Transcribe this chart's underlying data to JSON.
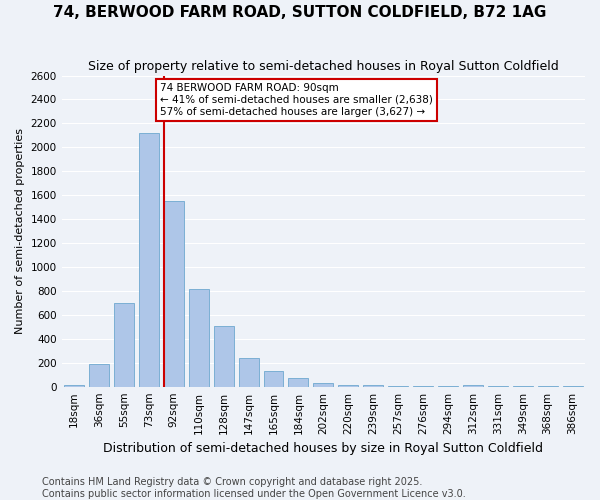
{
  "title": "74, BERWOOD FARM ROAD, SUTTON COLDFIELD, B72 1AG",
  "subtitle": "Size of property relative to semi-detached houses in Royal Sutton Coldfield",
  "xlabel": "Distribution of semi-detached houses by size in Royal Sutton Coldfield",
  "ylabel": "Number of semi-detached properties",
  "categories": [
    "18sqm",
    "36sqm",
    "55sqm",
    "73sqm",
    "92sqm",
    "110sqm",
    "128sqm",
    "147sqm",
    "165sqm",
    "184sqm",
    "202sqm",
    "220sqm",
    "239sqm",
    "257sqm",
    "276sqm",
    "294sqm",
    "312sqm",
    "331sqm",
    "349sqm",
    "368sqm",
    "386sqm"
  ],
  "values": [
    10,
    190,
    700,
    2120,
    1550,
    820,
    510,
    240,
    130,
    70,
    30,
    15,
    10,
    5,
    5,
    3,
    15,
    3,
    3,
    3,
    3
  ],
  "bar_color": "#aec6e8",
  "bar_edge_color": "#7bafd4",
  "property_line_x": 4,
  "property_sqm": "90sqm",
  "pct_smaller": 41,
  "n_smaller": 2638,
  "pct_larger": 57,
  "n_larger": 3627,
  "line_color": "#cc0000",
  "annotation_box_color": "#cc0000",
  "ylim": [
    0,
    2600
  ],
  "yticks": [
    0,
    200,
    400,
    600,
    800,
    1000,
    1200,
    1400,
    1600,
    1800,
    2000,
    2200,
    2400,
    2600
  ],
  "background_color": "#eef2f8",
  "grid_color": "#ffffff",
  "footer_line1": "Contains HM Land Registry data © Crown copyright and database right 2025.",
  "footer_line2": "Contains public sector information licensed under the Open Government Licence v3.0.",
  "title_fontsize": 11,
  "subtitle_fontsize": 9,
  "xlabel_fontsize": 9,
  "ylabel_fontsize": 8,
  "tick_fontsize": 7.5,
  "footer_fontsize": 7
}
